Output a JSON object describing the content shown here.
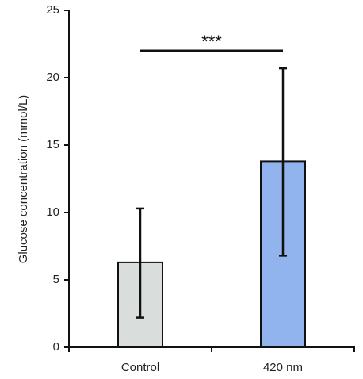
{
  "chart_data": {
    "type": "bar",
    "title": "",
    "xlabel": "",
    "ylabel": "Glucose concentration (mmol/L)",
    "categories": [
      "Control",
      "420 nm"
    ],
    "values": [
      6.3,
      13.8
    ],
    "error_upper": [
      10.3,
      20.7
    ],
    "error_lower": [
      2.2,
      6.8
    ],
    "bar_colors": [
      "#d9dedc",
      "#92b4ee"
    ],
    "ylim": [
      0,
      25
    ],
    "yticks": [
      0,
      5,
      10,
      15,
      20,
      25
    ],
    "grid": false,
    "legend": "none",
    "significance": {
      "label": "***",
      "from": "Control",
      "to": "420 nm",
      "y": 22
    }
  }
}
